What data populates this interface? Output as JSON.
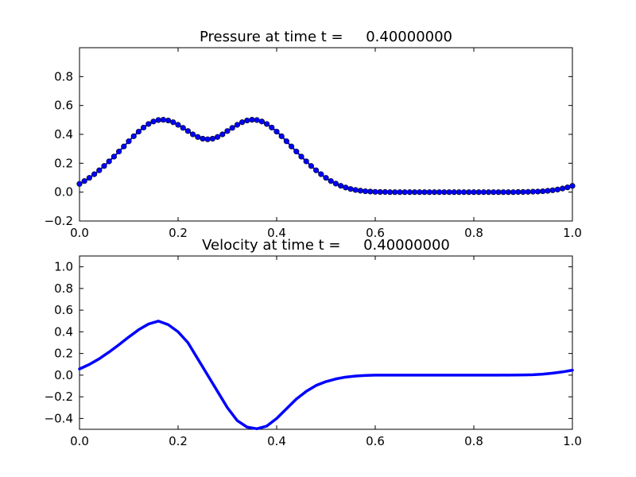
{
  "chart_data": [
    {
      "type": "scatter",
      "title": "Pressure at time t =     0.40000000",
      "xlim": [
        0.0,
        1.0
      ],
      "ylim": [
        -0.2,
        1.0
      ],
      "xticks": [
        "0.0",
        "0.2",
        "0.4",
        "0.6",
        "0.8",
        "1.0"
      ],
      "yticks": [
        "−0.2",
        "0.0",
        "0.2",
        "0.4",
        "0.6",
        "0.8"
      ],
      "grid": false,
      "marker_color": "#0000ff",
      "series": [
        {
          "style": "line-with-markers",
          "x": [
            0.0,
            0.01,
            0.02,
            0.03,
            0.04,
            0.05,
            0.06,
            0.07,
            0.08,
            0.09,
            0.1,
            0.11,
            0.12,
            0.13,
            0.14,
            0.15,
            0.16,
            0.17,
            0.18,
            0.19,
            0.2,
            0.21,
            0.22,
            0.23,
            0.24,
            0.25,
            0.26,
            0.27,
            0.28,
            0.29,
            0.3,
            0.31,
            0.32,
            0.33,
            0.34,
            0.35,
            0.36,
            0.37,
            0.38,
            0.39,
            0.4,
            0.41,
            0.42,
            0.43,
            0.44,
            0.45,
            0.46,
            0.47,
            0.48,
            0.49,
            0.5,
            0.51,
            0.52,
            0.53,
            0.54,
            0.55,
            0.56,
            0.57,
            0.58,
            0.59,
            0.6,
            0.61,
            0.62,
            0.63,
            0.64,
            0.65,
            0.66,
            0.67,
            0.68,
            0.69,
            0.7,
            0.71,
            0.72,
            0.73,
            0.74,
            0.75,
            0.76,
            0.77,
            0.78,
            0.79,
            0.8,
            0.81,
            0.82,
            0.83,
            0.84,
            0.85,
            0.86,
            0.87,
            0.88,
            0.89,
            0.9,
            0.91,
            0.92,
            0.93,
            0.94,
            0.95,
            0.96,
            0.97,
            0.98,
            0.99,
            1.0
          ],
          "y": [
            0.057,
            0.077,
            0.099,
            0.124,
            0.151,
            0.181,
            0.213,
            0.246,
            0.281,
            0.316,
            0.352,
            0.387,
            0.419,
            0.447,
            0.472,
            0.489,
            0.499,
            0.501,
            0.496,
            0.484,
            0.466,
            0.445,
            0.423,
            0.4,
            0.382,
            0.37,
            0.366,
            0.37,
            0.382,
            0.4,
            0.423,
            0.445,
            0.466,
            0.484,
            0.496,
            0.501,
            0.499,
            0.489,
            0.472,
            0.447,
            0.419,
            0.387,
            0.352,
            0.316,
            0.281,
            0.246,
            0.213,
            0.181,
            0.151,
            0.124,
            0.099,
            0.077,
            0.059,
            0.044,
            0.032,
            0.022,
            0.015,
            0.01,
            0.006,
            0.004,
            0.002,
            0.001,
            0.001,
            0.0,
            0.0,
            0.0,
            0.0,
            0.0,
            0.0,
            0.0,
            0.0,
            0.0,
            0.0,
            0.0,
            0.0,
            0.0,
            0.0,
            0.0,
            0.0,
            0.0,
            0.0,
            0.0,
            0.0,
            0.0,
            0.0,
            0.0,
            0.0,
            0.0,
            0.0,
            0.001,
            0.001,
            0.002,
            0.003,
            0.004,
            0.006,
            0.009,
            0.013,
            0.018,
            0.025,
            0.033,
            0.043
          ]
        }
      ]
    },
    {
      "type": "line",
      "title": "Velocity at time t =     0.40000000",
      "xlim": [
        0.0,
        1.0
      ],
      "ylim": [
        -0.5,
        1.1
      ],
      "xticks": [
        "0.0",
        "0.2",
        "0.4",
        "0.6",
        "0.8",
        "1.0"
      ],
      "yticks": [
        "−0.4",
        "−0.2",
        "0.0",
        "0.2",
        "0.4",
        "0.6",
        "0.8",
        "1.0"
      ],
      "grid": false,
      "line_color": "#0000ff",
      "series": [
        {
          "style": "line",
          "x": [
            0.0,
            0.02,
            0.04,
            0.06,
            0.08,
            0.1,
            0.12,
            0.14,
            0.16,
            0.18,
            0.2,
            0.22,
            0.24,
            0.26,
            0.28,
            0.3,
            0.32,
            0.34,
            0.36,
            0.38,
            0.4,
            0.42,
            0.44,
            0.46,
            0.48,
            0.5,
            0.52,
            0.54,
            0.56,
            0.58,
            0.6,
            0.65,
            0.7,
            0.75,
            0.8,
            0.85,
            0.88,
            0.9,
            0.92,
            0.94,
            0.96,
            0.98,
            1.0
          ],
          "y": [
            0.057,
            0.099,
            0.151,
            0.213,
            0.281,
            0.352,
            0.419,
            0.472,
            0.499,
            0.466,
            0.4,
            0.3,
            0.15,
            0.0,
            -0.15,
            -0.3,
            -0.42,
            -0.48,
            -0.495,
            -0.47,
            -0.4,
            -0.31,
            -0.22,
            -0.15,
            -0.095,
            -0.06,
            -0.035,
            -0.018,
            -0.008,
            -0.003,
            0.0,
            0.0,
            0.0,
            0.0,
            0.0,
            0.0,
            0.001,
            0.002,
            0.004,
            0.009,
            0.018,
            0.03,
            0.046
          ]
        }
      ]
    }
  ]
}
